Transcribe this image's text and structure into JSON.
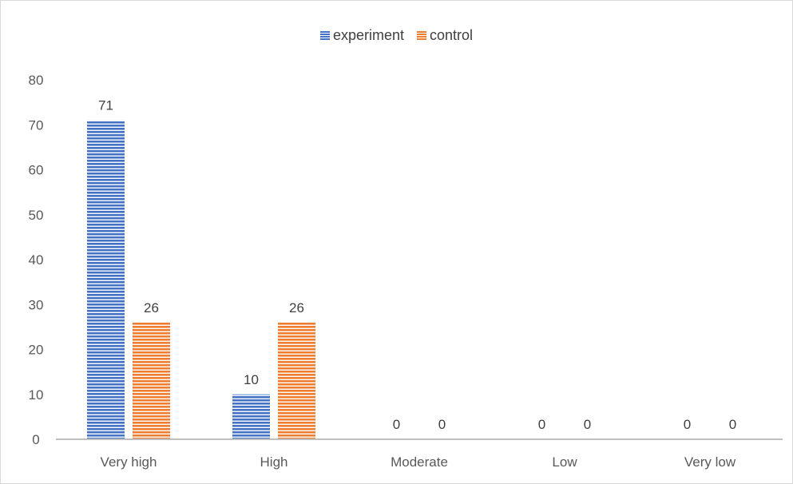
{
  "chart_data": {
    "type": "bar",
    "title": "",
    "xlabel": "",
    "ylabel": "",
    "categories": [
      "Very high",
      "High",
      "Moderate",
      "Low",
      "Very low"
    ],
    "series": [
      {
        "name": "experiment",
        "values": [
          71,
          10,
          0,
          0,
          0
        ],
        "color": "#4472c4"
      },
      {
        "name": "control",
        "values": [
          26,
          26,
          0,
          0,
          0
        ],
        "color": "#ed7d31"
      }
    ],
    "ylim": [
      0,
      80
    ],
    "yticks": [
      0,
      10,
      20,
      30,
      40,
      50,
      60,
      70,
      80
    ],
    "grid": false,
    "legend_position": "top",
    "bar_fill_pattern": "horizontal-stripes"
  }
}
